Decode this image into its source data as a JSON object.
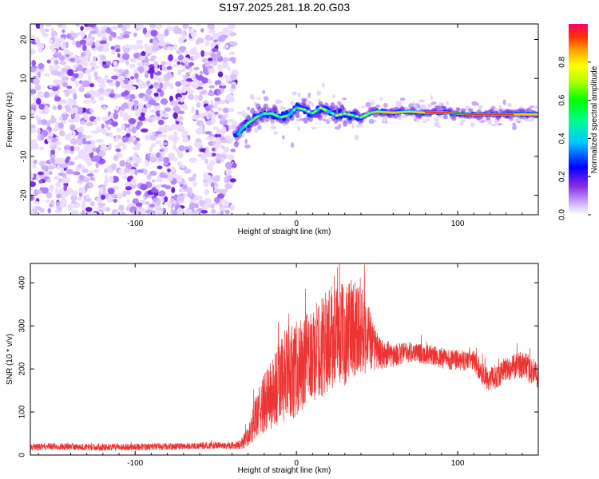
{
  "title": "S197.2025.281.18.20.G03",
  "chart_data": [
    {
      "type": "heatmap",
      "xlabel": "Height of straight line (km)",
      "ylabel": "Frequency (Hz)",
      "xlim": [
        -165,
        150
      ],
      "ylim": [
        -25,
        24
      ],
      "xticks": [
        -100,
        0,
        100
      ],
      "xtick_labels": [
        "-100",
        "0",
        "100"
      ],
      "yticks": [
        -20,
        -10,
        0,
        10,
        20
      ],
      "ytick_labels": [
        "-20",
        "-10",
        "0",
        "10",
        "20"
      ],
      "noise_region_end_x": -38,
      "signal_start_x": -38,
      "ridge": {
        "name": "frequency ridge",
        "x": [
          -38,
          -34,
          -30,
          -25,
          -20,
          -15,
          -10,
          -5,
          0,
          5,
          10,
          15,
          20,
          25,
          30,
          35,
          40,
          45,
          50,
          60,
          70,
          80,
          90,
          100,
          110,
          120,
          130,
          140,
          150
        ],
        "y": [
          -5.5,
          -3.0,
          -1.5,
          0.0,
          1.0,
          1.0,
          0.0,
          0.5,
          2.5,
          2.0,
          1.0,
          2.5,
          1.5,
          0.5,
          1.0,
          0.5,
          0.0,
          1.0,
          1.5,
          1.2,
          1.5,
          1.2,
          1.3,
          1.0,
          0.8,
          0.8,
          0.8,
          0.8,
          0.8
        ]
      },
      "colorbar": {
        "label": "Normalized spectral amplitude",
        "range": [
          0,
          1
        ],
        "ticks": [
          0.0,
          0.2,
          0.4,
          0.6,
          0.8
        ],
        "tick_labels": [
          "0.0",
          "0.2",
          "0.4",
          "0.6",
          "0.8"
        ],
        "colors": [
          "#ffffff",
          "#c8a8ff",
          "#8a2be2",
          "#0000ff",
          "#00c8ff",
          "#00ffaa",
          "#00ff00",
          "#b4ff00",
          "#ffff00",
          "#ffa500",
          "#ff3300",
          "#ff0066"
        ]
      }
    },
    {
      "type": "line",
      "xlabel": "Height of straight line (km)",
      "ylabel": "SNR (10 * v/v)",
      "xlim": [
        -165,
        150
      ],
      "ylim": [
        0,
        445
      ],
      "xticks": [
        -100,
        0,
        100
      ],
      "xtick_labels": [
        "-100",
        "0",
        "100"
      ],
      "yticks": [
        0,
        100,
        200,
        300,
        400
      ],
      "ytick_labels": [
        "0",
        "100",
        "200",
        "300",
        "400"
      ],
      "series": [
        {
          "name": "SNR",
          "color": "#ee3333",
          "x": [
            -165,
            -150,
            -125,
            -100,
            -75,
            -50,
            -40,
            -35,
            -30,
            -25,
            -20,
            -15,
            -10,
            -5,
            0,
            5,
            10,
            15,
            20,
            25,
            30,
            35,
            40,
            45,
            50,
            55,
            60,
            70,
            80,
            90,
            100,
            110,
            115,
            120,
            125,
            130,
            140,
            150
          ],
          "y": [
            18,
            20,
            18,
            19,
            20,
            22,
            22,
            25,
            40,
            90,
            120,
            140,
            170,
            190,
            200,
            210,
            230,
            250,
            270,
            280,
            280,
            300,
            300,
            270,
            240,
            230,
            230,
            240,
            235,
            225,
            220,
            220,
            190,
            175,
            185,
            200,
            210,
            185
          ],
          "spread": [
            10,
            10,
            10,
            10,
            10,
            10,
            10,
            15,
            30,
            60,
            90,
            110,
            130,
            140,
            140,
            140,
            140,
            150,
            150,
            150,
            150,
            150,
            140,
            100,
            50,
            40,
            35,
            30,
            30,
            30,
            30,
            30,
            35,
            35,
            35,
            35,
            40,
            40
          ]
        }
      ]
    }
  ]
}
